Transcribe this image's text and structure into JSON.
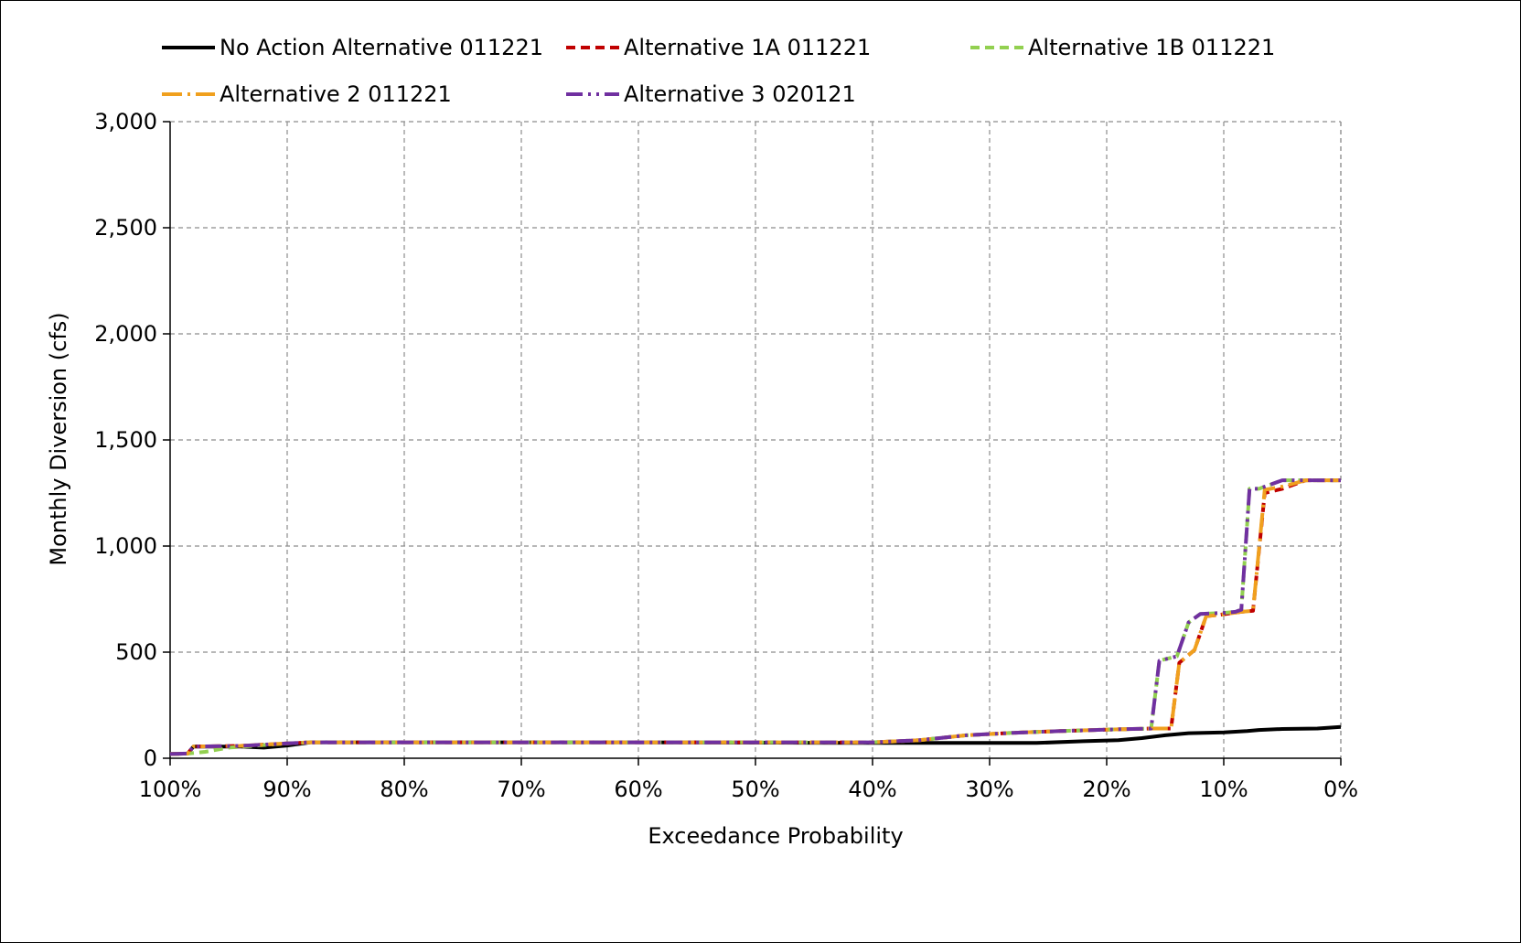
{
  "chart_data": {
    "type": "line",
    "title": "",
    "xlabel": "Exceedance Probability",
    "ylabel": "Monthly Diversion (cfs)",
    "xlim": [
      100,
      0
    ],
    "ylim": [
      0,
      3000
    ],
    "grid": true,
    "legend_position": "top",
    "x_ticks": [
      {
        "value": 100,
        "label": "100%"
      },
      {
        "value": 90,
        "label": "90%"
      },
      {
        "value": 80,
        "label": "80%"
      },
      {
        "value": 70,
        "label": "70%"
      },
      {
        "value": 60,
        "label": "60%"
      },
      {
        "value": 50,
        "label": "50%"
      },
      {
        "value": 40,
        "label": "40%"
      },
      {
        "value": 30,
        "label": "30%"
      },
      {
        "value": 20,
        "label": "20%"
      },
      {
        "value": 10,
        "label": "10%"
      },
      {
        "value": 0,
        "label": "0%"
      }
    ],
    "y_ticks": [
      {
        "value": 0,
        "label": "0"
      },
      {
        "value": 500,
        "label": "500"
      },
      {
        "value": 1000,
        "label": "1,000"
      },
      {
        "value": 1500,
        "label": "1,500"
      },
      {
        "value": 2000,
        "label": "2,000"
      },
      {
        "value": 2500,
        "label": "2,500"
      },
      {
        "value": 3000,
        "label": "3,000"
      }
    ],
    "series": [
      {
        "name": "No Action Alternative 011221",
        "color": "#000000",
        "dash": "solid",
        "x": [
          100,
          98.5,
          98,
          94,
          92,
          90,
          88,
          60,
          40,
          30,
          26,
          22,
          19,
          17,
          15,
          13,
          10,
          8,
          7,
          5,
          2,
          0
        ],
        "y": [
          20,
          22,
          55,
          55,
          50,
          60,
          75,
          75,
          72,
          72,
          72,
          80,
          85,
          95,
          108,
          118,
          122,
          128,
          133,
          138,
          140,
          148
        ]
      },
      {
        "name": "Alternative 1A 011221",
        "color": "#C00000",
        "dash": "dashed",
        "x": [
          100,
          98.5,
          98,
          94,
          90,
          88,
          60,
          40,
          36,
          32,
          28,
          24,
          20,
          16,
          14.5,
          13.8,
          12.5,
          11.5,
          10.5,
          8.5,
          7.5,
          6.5,
          5,
          3,
          0
        ],
        "y": [
          20,
          22,
          55,
          58,
          70,
          75,
          75,
          75,
          85,
          108,
          120,
          128,
          135,
          140,
          140,
          450,
          510,
          670,
          675,
          690,
          695,
          1250,
          1270,
          1310,
          1310
        ]
      },
      {
        "name": "Alternative 1B 011221",
        "color": "#92D050",
        "dash": "dashed",
        "x": [
          100,
          98.5,
          97,
          95,
          90,
          88,
          60,
          40,
          36,
          32,
          28,
          24,
          20,
          16.2,
          15.5,
          14,
          13,
          12,
          10,
          9,
          8.5,
          7.8,
          7,
          5,
          3,
          0
        ],
        "y": [
          20,
          22,
          30,
          50,
          70,
          75,
          75,
          75,
          85,
          108,
          120,
          128,
          135,
          140,
          460,
          480,
          640,
          680,
          685,
          690,
          700,
          1270,
          1270,
          1310,
          1310,
          1310
        ]
      },
      {
        "name": "Alternative 2 011221",
        "color": "#F0A01E",
        "dash": "long-dash-dot",
        "x": [
          100,
          98.5,
          98,
          94,
          90,
          88,
          60,
          40,
          36,
          32,
          28,
          24,
          20,
          16,
          14.5,
          13.8,
          12.5,
          11.5,
          10.5,
          8.5,
          7.5,
          6.5,
          5,
          3,
          0
        ],
        "y": [
          20,
          22,
          55,
          58,
          70,
          75,
          75,
          75,
          85,
          108,
          120,
          128,
          135,
          140,
          140,
          450,
          510,
          670,
          675,
          690,
          695,
          1265,
          1280,
          1310,
          1310
        ]
      },
      {
        "name": "Alternative 3 020121",
        "color": "#7030A0",
        "dash": "dash-dot-dot",
        "x": [
          100,
          98.5,
          98,
          94,
          90,
          88,
          60,
          40,
          36,
          32,
          28,
          24,
          20,
          16.2,
          15.5,
          14,
          13,
          12,
          10,
          9,
          8.5,
          7.8,
          7,
          5,
          3,
          0
        ],
        "y": [
          20,
          22,
          55,
          58,
          70,
          75,
          75,
          75,
          85,
          108,
          120,
          128,
          135,
          140,
          460,
          480,
          640,
          680,
          685,
          690,
          700,
          1270,
          1270,
          1310,
          1310,
          1310
        ]
      }
    ]
  }
}
